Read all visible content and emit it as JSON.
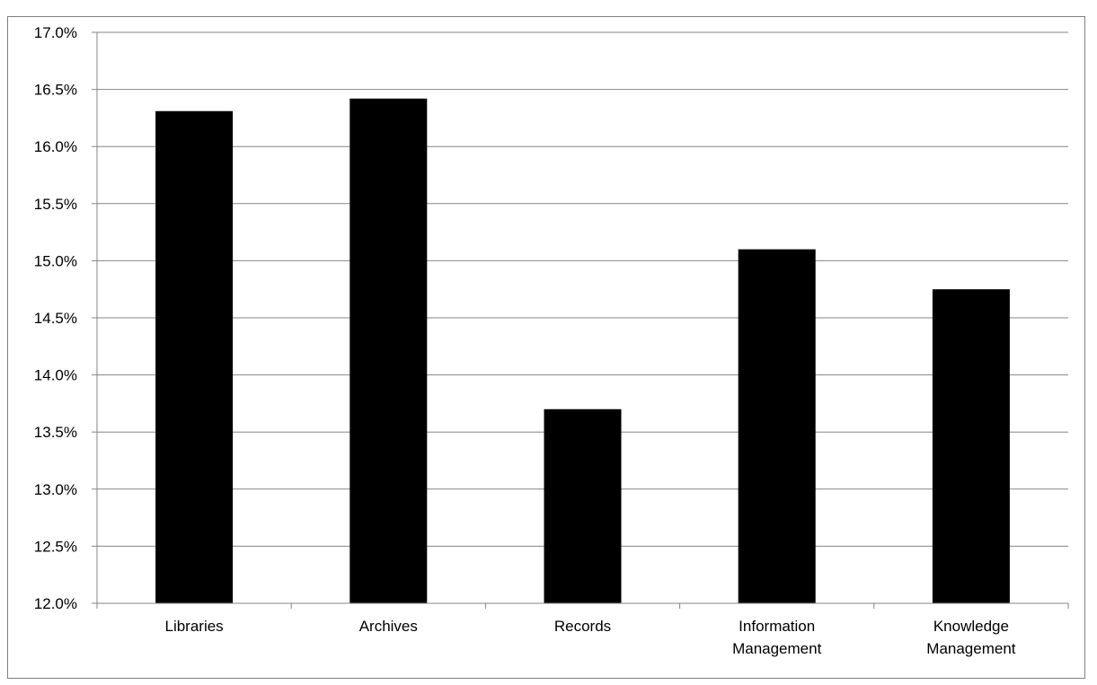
{
  "figure_title": "",
  "chart_data": {
    "type": "bar",
    "categories": [
      "Libraries",
      "Archives",
      "Records",
      "Information Management",
      "Knowledge Management"
    ],
    "category_lines": [
      [
        "Libraries"
      ],
      [
        "Archives"
      ],
      [
        "Records"
      ],
      [
        "Information",
        "Management"
      ],
      [
        "Knowledge",
        "Management"
      ]
    ],
    "values": [
      0.1631,
      0.1642,
      0.137,
      0.151,
      0.1475
    ],
    "ylim": [
      0.12,
      0.17
    ],
    "yticks": [
      "12.0%",
      "12.5%",
      "13.0%",
      "13.5%",
      "14.0%",
      "14.5%",
      "15.0%",
      "15.5%",
      "16.0%",
      "16.5%",
      "17.0%"
    ],
    "grid": true,
    "legend": "none",
    "bar_color": "#000000",
    "grid_color": "#868686"
  }
}
